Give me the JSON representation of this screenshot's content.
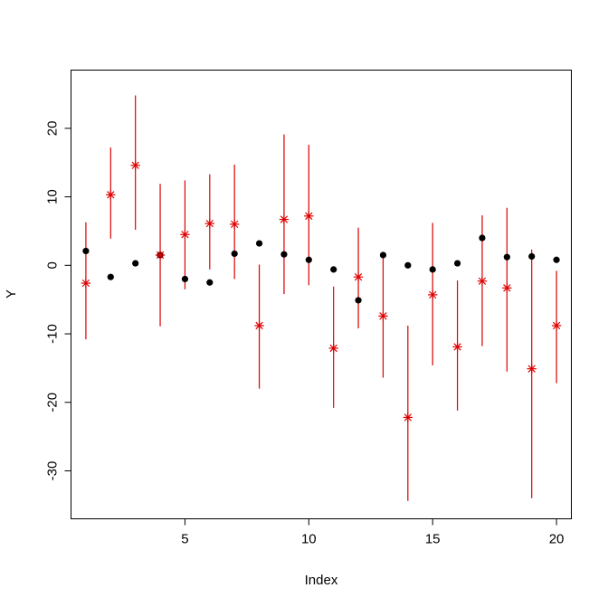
{
  "chart_data": {
    "type": "scatter",
    "title": "",
    "xlabel": "Index",
    "ylabel": "Y",
    "xlim": [
      0.4,
      20.6
    ],
    "ylim": [
      -37,
      28.5
    ],
    "xticks": [
      5,
      10,
      15,
      20
    ],
    "yticks": [
      -30,
      -20,
      -10,
      0,
      10,
      20
    ],
    "grid": false,
    "colors": {
      "points": "#000000",
      "estimates": "#dd0000"
    },
    "series": [
      {
        "marker": "dot",
        "x": [
          1,
          2,
          3,
          4,
          5,
          6,
          7,
          8,
          9,
          10,
          11,
          12,
          13,
          14,
          15,
          16,
          17,
          18,
          19,
          20
        ],
        "y": [
          2.1,
          -1.7,
          0.3,
          1.5,
          -2.0,
          -2.5,
          1.7,
          3.2,
          1.6,
          0.8,
          -0.6,
          -5.1,
          1.5,
          0.0,
          -0.6,
          0.3,
          4.0,
          1.2,
          1.3,
          0.8
        ]
      },
      {
        "marker": "star",
        "x": [
          1,
          2,
          3,
          4,
          5,
          6,
          7,
          8,
          9,
          10,
          11,
          12,
          13,
          14,
          15,
          16,
          17,
          18,
          19,
          20
        ],
        "y": [
          -2.6,
          10.3,
          14.6,
          1.5,
          4.5,
          6.1,
          6.0,
          -8.8,
          6.7,
          7.2,
          -12.1,
          -1.7,
          -7.4,
          -22.2,
          -4.3,
          -11.9,
          -2.3,
          -3.3,
          -15.1,
          -8.8
        ],
        "lower": [
          -10.8,
          3.9,
          5.2,
          -8.9,
          -3.5,
          -0.6,
          -2.0,
          -18.0,
          -4.2,
          -2.9,
          -20.8,
          -9.2,
          -16.4,
          -34.4,
          -14.6,
          -21.2,
          -11.8,
          -15.5,
          -34.0,
          -17.2
        ],
        "upper": [
          6.3,
          17.2,
          24.8,
          11.9,
          12.4,
          13.3,
          14.7,
          0.1,
          19.1,
          17.6,
          -3.1,
          5.5,
          1.6,
          -8.8,
          6.2,
          -2.2,
          7.3,
          8.4,
          2.3,
          -0.8
        ]
      }
    ]
  }
}
